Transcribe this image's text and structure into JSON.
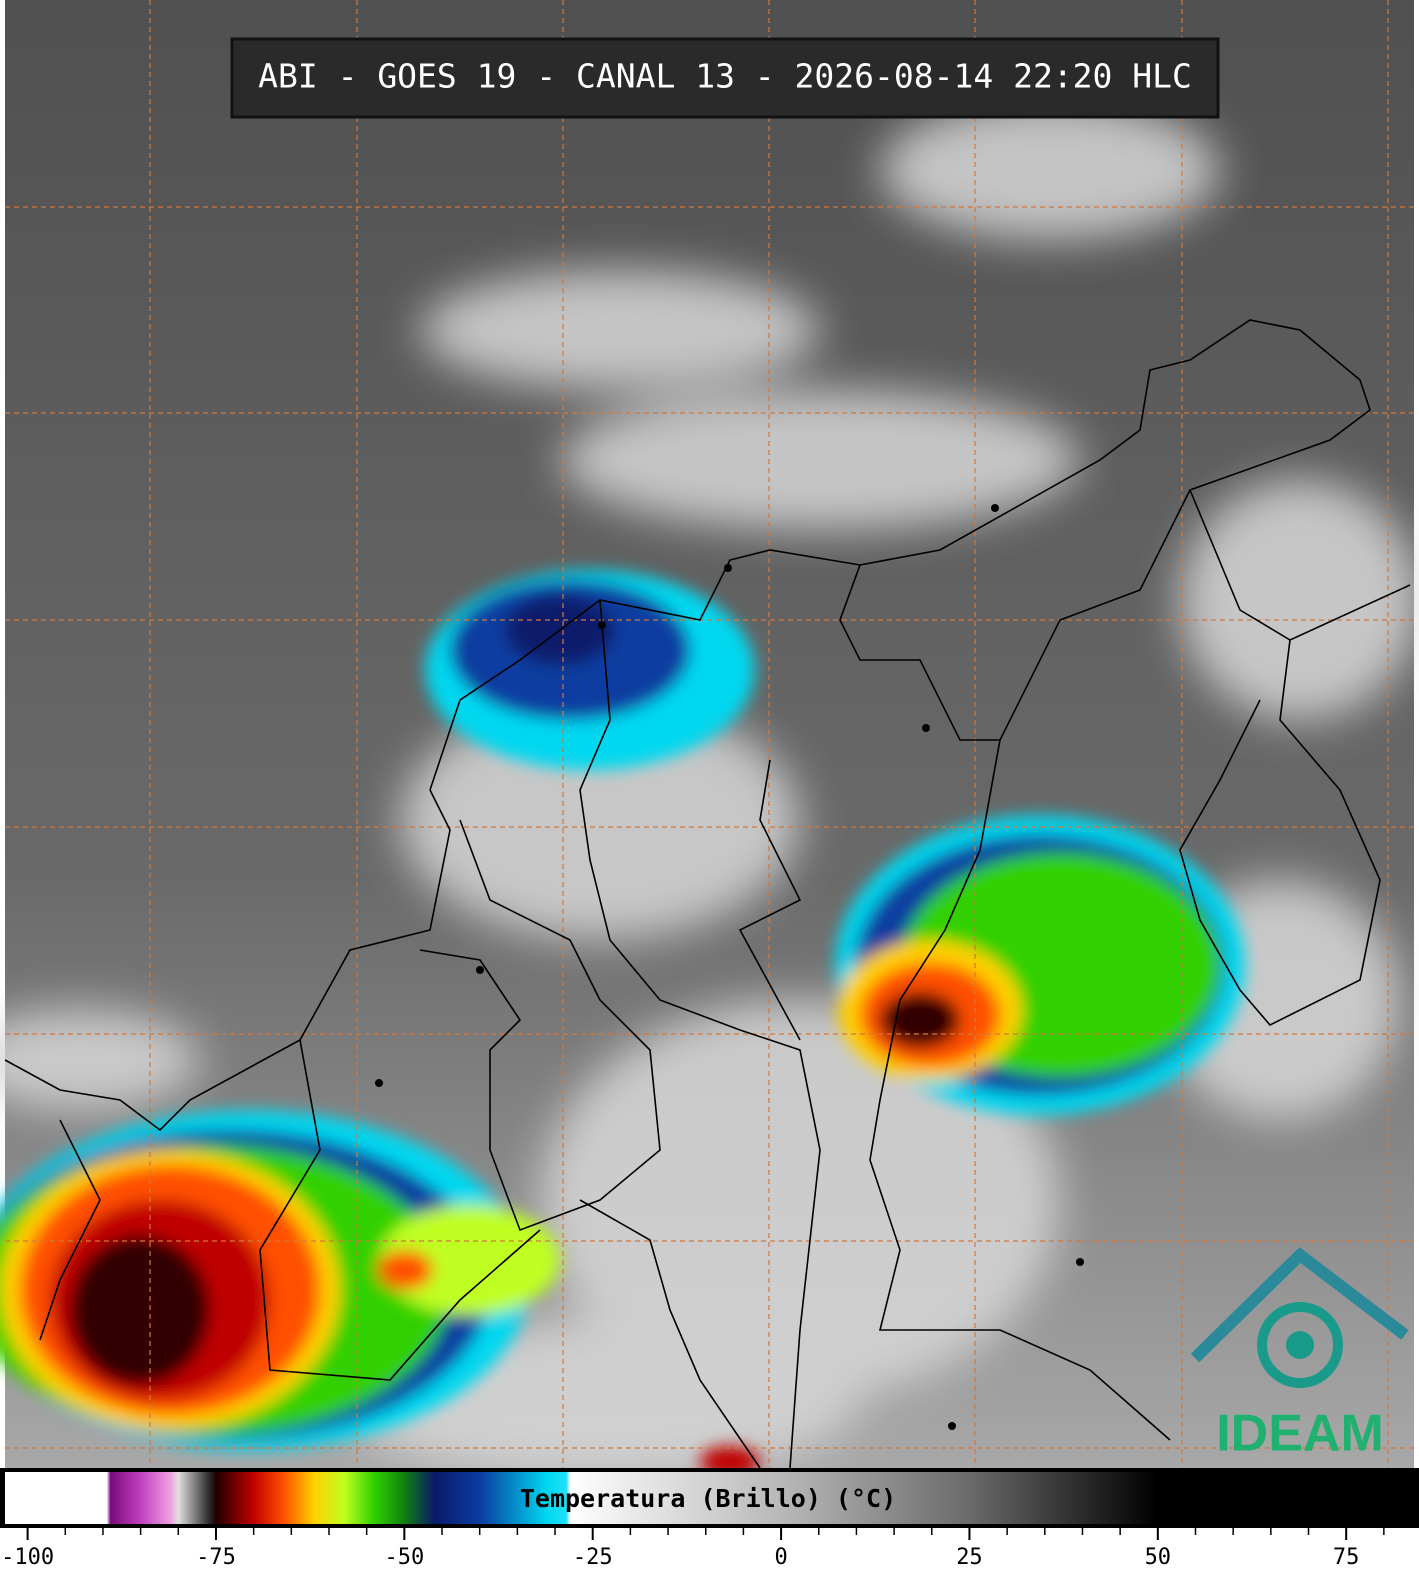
{
  "chart_data": {
    "type": "colorbar",
    "title": "ABI - GOES 19 - CANAL 13 - 2026-08-14 22:20 HLC",
    "colorbar_label": "Temperatura (Brillo) (°C)",
    "logo": "IDEAM",
    "xlim": [
      -103,
      84
    ],
    "xticks": [
      -100,
      -75,
      -50,
      -25,
      0,
      25,
      50,
      75
    ],
    "minor_ticks": [
      -95,
      -90,
      -85,
      -80,
      -70,
      -65,
      -60,
      -55,
      -45,
      -40,
      -35,
      -30,
      -20,
      -15,
      -10,
      -5,
      5,
      10,
      15,
      20,
      30,
      35,
      40,
      45,
      55,
      60,
      65,
      70,
      80
    ],
    "colorbar": [
      {
        "value": -103,
        "color": "#ffffff"
      },
      {
        "value": -89.5,
        "color": "#ffffff"
      },
      {
        "value": -89,
        "color": "#7a0a7a"
      },
      {
        "value": -85,
        "color": "#c040c0"
      },
      {
        "value": -81,
        "color": "#f0a0e0"
      },
      {
        "value": -80,
        "color": "#e0e0e0"
      },
      {
        "value": -76,
        "color": "#303030"
      },
      {
        "value": -75,
        "color": "#200000"
      },
      {
        "value": -70,
        "color": "#c00000"
      },
      {
        "value": -66,
        "color": "#ff5000"
      },
      {
        "value": -62,
        "color": "#ffd000"
      },
      {
        "value": -58,
        "color": "#c0ff20"
      },
      {
        "value": -54,
        "color": "#30d000"
      },
      {
        "value": -50,
        "color": "#108010"
      },
      {
        "value": -46,
        "color": "#0a1a6a"
      },
      {
        "value": -40,
        "color": "#0a3ca0"
      },
      {
        "value": -31,
        "color": "#00d8f0"
      },
      {
        "value": -28.5,
        "color": "#20e0f8"
      },
      {
        "value": -28,
        "color": "#ffffff"
      },
      {
        "value": 0,
        "color": "#b8b8b8"
      },
      {
        "value": 25,
        "color": "#6a6a6a"
      },
      {
        "value": 50,
        "color": "#000000"
      },
      {
        "value": 84,
        "color": "#000000"
      }
    ]
  }
}
